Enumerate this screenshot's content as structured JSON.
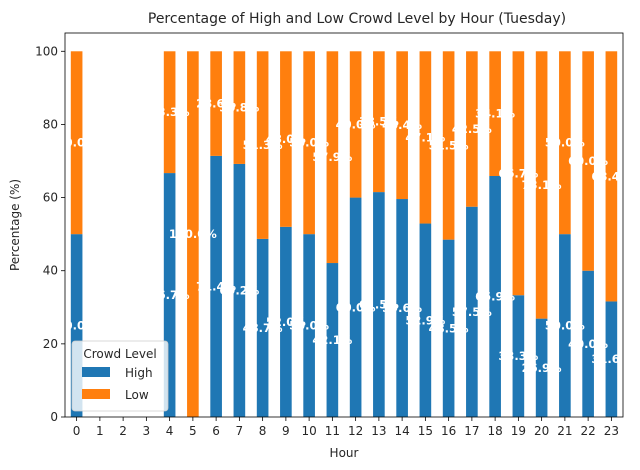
{
  "chart_data": {
    "type": "bar",
    "stacked": true,
    "title": "Percentage of High and Low Crowd Level by Hour (Tuesday)",
    "xlabel": "Hour",
    "ylabel": "Percentage (%)",
    "ylim": [
      0,
      105
    ],
    "yticks": [
      0,
      20,
      40,
      60,
      80,
      100
    ],
    "categories": [
      "0",
      "1",
      "2",
      "3",
      "4",
      "5",
      "6",
      "7",
      "8",
      "9",
      "10",
      "11",
      "12",
      "13",
      "14",
      "15",
      "16",
      "17",
      "18",
      "19",
      "20",
      "21",
      "22",
      "23"
    ],
    "series": [
      {
        "name": "High",
        "color": "#1f77b4",
        "values": [
          50.0,
          null,
          null,
          null,
          66.7,
          0,
          71.4,
          69.2,
          48.7,
          52.0,
          50.0,
          42.1,
          60.0,
          61.5,
          59.6,
          52.9,
          48.5,
          57.5,
          65.9,
          33.3,
          26.9,
          50.0,
          40.0,
          31.6
        ]
      },
      {
        "name": "Low",
        "color": "#ff7f0e",
        "values": [
          50.0,
          null,
          null,
          null,
          33.3,
          100.0,
          28.6,
          30.8,
          51.3,
          48.0,
          50.0,
          57.9,
          40.0,
          38.5,
          40.4,
          47.1,
          51.5,
          42.5,
          34.1,
          66.7,
          73.1,
          50.0,
          60.0,
          68.4
        ]
      }
    ],
    "legend": {
      "title": "Crowd Level",
      "position": "lower-left"
    },
    "grid": false
  }
}
